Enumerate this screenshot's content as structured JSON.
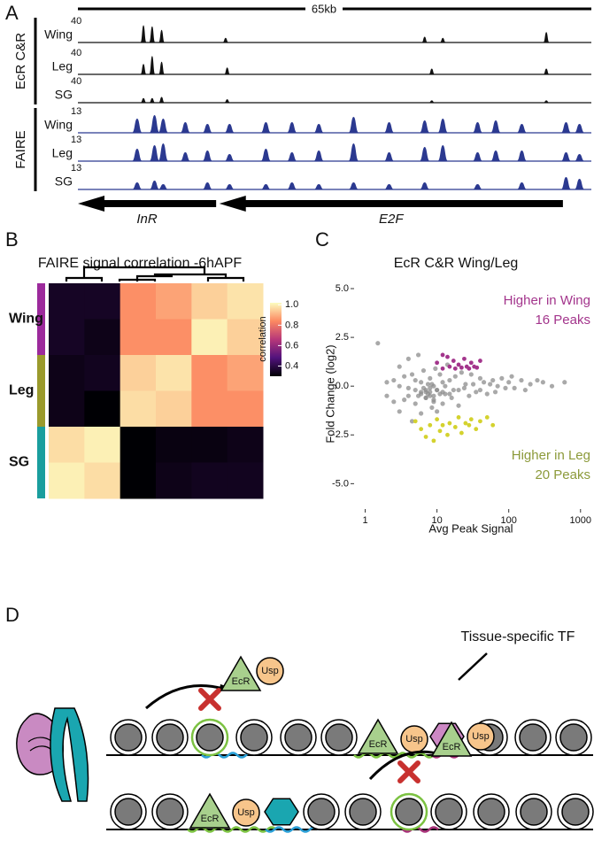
{
  "panel_labels": [
    "A",
    "B",
    "C",
    "D"
  ],
  "panel_a": {
    "scale_label": "65kb",
    "xlim": [
      0,
      65
    ],
    "groups": [
      {
        "name": "EcR C&R",
        "color": "#111111",
        "tracks": [
          {
            "name": "Wing",
            "max_label": "40",
            "max": 40,
            "peaks": [
              {
                "x": 8.3,
                "h": 30
              },
              {
                "x": 9.4,
                "h": 28
              },
              {
                "x": 10.6,
                "h": 22
              },
              {
                "x": 18.7,
                "h": 8
              },
              {
                "x": 43.9,
                "h": 10
              },
              {
                "x": 46.2,
                "h": 8
              },
              {
                "x": 59.3,
                "h": 18
              }
            ]
          },
          {
            "name": "Leg",
            "max_label": "40",
            "max": 40,
            "peaks": [
              {
                "x": 8.3,
                "h": 18
              },
              {
                "x": 9.4,
                "h": 32
              },
              {
                "x": 10.6,
                "h": 22
              },
              {
                "x": 18.9,
                "h": 12
              },
              {
                "x": 44.8,
                "h": 10
              },
              {
                "x": 59.3,
                "h": 10
              }
            ]
          },
          {
            "name": "SG",
            "max_label": "40",
            "max": 40,
            "peaks": [
              {
                "x": 8.3,
                "h": 8
              },
              {
                "x": 9.4,
                "h": 8
              },
              {
                "x": 10.6,
                "h": 10
              },
              {
                "x": 18.9,
                "h": 6
              },
              {
                "x": 44.8,
                "h": 4
              },
              {
                "x": 59.3,
                "h": 4
              }
            ]
          }
        ]
      },
      {
        "name": "FAIRE",
        "color": "#2b3990",
        "tracks": [
          {
            "name": "Wing",
            "max_label": "13",
            "max": 13,
            "peaks": [
              {
                "x": 7.5,
                "h": 8
              },
              {
                "x": 9.7,
                "h": 10
              },
              {
                "x": 10.8,
                "h": 8
              },
              {
                "x": 13.6,
                "h": 6
              },
              {
                "x": 16.4,
                "h": 5
              },
              {
                "x": 19.2,
                "h": 5
              },
              {
                "x": 23.8,
                "h": 6
              },
              {
                "x": 27.1,
                "h": 6
              },
              {
                "x": 30.5,
                "h": 5
              },
              {
                "x": 34.9,
                "h": 9
              },
              {
                "x": 39.4,
                "h": 6
              },
              {
                "x": 43.9,
                "h": 7
              },
              {
                "x": 46.2,
                "h": 8
              },
              {
                "x": 50.6,
                "h": 6
              },
              {
                "x": 52.9,
                "h": 7
              },
              {
                "x": 56.2,
                "h": 5
              },
              {
                "x": 61.8,
                "h": 6
              },
              {
                "x": 63.5,
                "h": 5
              }
            ]
          },
          {
            "name": "Leg",
            "max_label": "13",
            "max": 13,
            "peaks": [
              {
                "x": 7.5,
                "h": 7
              },
              {
                "x": 9.7,
                "h": 9
              },
              {
                "x": 10.8,
                "h": 10
              },
              {
                "x": 13.6,
                "h": 5
              },
              {
                "x": 16.4,
                "h": 6
              },
              {
                "x": 19.2,
                "h": 4
              },
              {
                "x": 23.8,
                "h": 7
              },
              {
                "x": 27.1,
                "h": 5
              },
              {
                "x": 30.5,
                "h": 6
              },
              {
                "x": 34.9,
                "h": 10
              },
              {
                "x": 39.4,
                "h": 5
              },
              {
                "x": 43.9,
                "h": 8
              },
              {
                "x": 46.2,
                "h": 9
              },
              {
                "x": 50.6,
                "h": 5
              },
              {
                "x": 52.9,
                "h": 6
              },
              {
                "x": 56.2,
                "h": 6
              },
              {
                "x": 61.8,
                "h": 5
              },
              {
                "x": 63.5,
                "h": 4
              }
            ]
          },
          {
            "name": "SG",
            "max_label": "13",
            "max": 13,
            "peaks": [
              {
                "x": 7.5,
                "h": 4
              },
              {
                "x": 9.7,
                "h": 5
              },
              {
                "x": 10.8,
                "h": 3
              },
              {
                "x": 16.4,
                "h": 4
              },
              {
                "x": 19.2,
                "h": 3
              },
              {
                "x": 23.8,
                "h": 3
              },
              {
                "x": 27.1,
                "h": 4
              },
              {
                "x": 30.5,
                "h": 3
              },
              {
                "x": 34.9,
                "h": 4
              },
              {
                "x": 39.4,
                "h": 3
              },
              {
                "x": 43.9,
                "h": 4
              },
              {
                "x": 50.6,
                "h": 3
              },
              {
                "x": 56.2,
                "h": 4
              },
              {
                "x": 61.8,
                "h": 7
              },
              {
                "x": 63.5,
                "h": 6
              }
            ]
          }
        ]
      }
    ],
    "genes": [
      {
        "name": "InR",
        "start": 0,
        "end": 17.5
      },
      {
        "name": "E2F",
        "start": 17.9,
        "end": 61.4
      }
    ]
  },
  "chart_data": [
    {
      "type": "heatmap",
      "title": "FAIRE signal correlation -6hAPF",
      "rows": [
        "Wing",
        "Leg",
        "SG"
      ],
      "row_colors": [
        "#9c2a9c",
        "#9a9a2c",
        "#1a9e9e"
      ],
      "values": [
        [
          0.35,
          0.35,
          0.85,
          0.88,
          0.95,
          0.98
        ],
        [
          0.35,
          0.33,
          0.85,
          0.85,
          1.0,
          0.95
        ],
        [
          0.33,
          0.34,
          0.95,
          0.98,
          0.85,
          0.88
        ],
        [
          0.33,
          0.3,
          0.97,
          0.95,
          0.85,
          0.85
        ],
        [
          0.97,
          1.0,
          0.28,
          0.32,
          0.32,
          0.33
        ],
        [
          1.0,
          0.97,
          0.3,
          0.33,
          0.34,
          0.34
        ]
      ],
      "colormap": [
        "#000004",
        "#51127c",
        "#b73779",
        "#fc8961",
        "#fcfdbf"
      ],
      "clim": [
        0.3,
        1.02
      ],
      "colorbar_label": "correlation",
      "cticks": [
        {
          "value": 1.0,
          "label": "1.0"
        },
        0.8,
        0.6,
        0.4
      ]
    },
    {
      "type": "scatter",
      "title": "EcR C&R Wing/Leg",
      "xlabel": "Avg Peak Signal",
      "ylabel": "Fold Change (log2)",
      "xscale": "log",
      "xlim": [
        0.7,
        1300
      ],
      "xticks": [
        1,
        10,
        100,
        1000
      ],
      "ylim": [
        -6.3,
        5.5
      ],
      "yticks": [
        {
          "value": 5,
          "label": "5.0"
        },
        2.5,
        {
          "value": 0,
          "label": "0.0"
        },
        -2.5,
        {
          "value": -5,
          "label": "-5.0"
        }
      ],
      "series": [
        {
          "color": "#8c8c8c",
          "points": [
            [
              1.5,
              2.2
            ],
            [
              2,
              0.2
            ],
            [
              2.5,
              -0.8
            ],
            [
              3,
              1.0
            ],
            [
              3,
              -1.3
            ],
            [
              3.5,
              0.5
            ],
            [
              4,
              -0.5
            ],
            [
              4,
              1.4
            ],
            [
              4.5,
              -1.8
            ],
            [
              5,
              0.3
            ],
            [
              5,
              -0.9
            ],
            [
              5.5,
              1.6
            ],
            [
              6,
              -0.3
            ],
            [
              6,
              -1.4
            ],
            [
              6.5,
              0.8
            ],
            [
              7,
              -0.2
            ],
            [
              7,
              -0.6
            ],
            [
              7.5,
              0.1
            ],
            [
              8,
              -0.3
            ],
            [
              8,
              -0.5
            ],
            [
              8,
              0.4
            ],
            [
              8.5,
              -1.1
            ],
            [
              9,
              0.0
            ],
            [
              9,
              -0.7
            ],
            [
              9.5,
              0.9
            ],
            [
              10,
              -0.2
            ],
            [
              10,
              -1.3
            ],
            [
              11,
              0.6
            ],
            [
              12,
              0.2
            ],
            [
              12,
              -0.9
            ],
            [
              13,
              -0.4
            ],
            [
              14,
              1.1
            ],
            [
              15,
              0.3
            ],
            [
              16,
              -0.6
            ],
            [
              18,
              0.5
            ],
            [
              20,
              -0.2
            ],
            [
              20,
              -1.0
            ],
            [
              22,
              0.7
            ],
            [
              25,
              0.1
            ],
            [
              28,
              -0.5
            ],
            [
              30,
              0.6
            ],
            [
              35,
              -0.3
            ],
            [
              40,
              0.4
            ],
            [
              45,
              0.2
            ],
            [
              50,
              -0.4
            ],
            [
              60,
              0.3
            ],
            [
              70,
              0.0
            ],
            [
              80,
              0.4
            ],
            [
              100,
              0.2
            ],
            [
              120,
              -0.1
            ],
            [
              150,
              0.3
            ],
            [
              200,
              0.1
            ],
            [
              250,
              0.3
            ],
            [
              300,
              0.2
            ],
            [
              400,
              0.0
            ],
            [
              600,
              0.2
            ],
            [
              5,
              -0.2
            ],
            [
              6,
              -0.4
            ],
            [
              7,
              -0.3
            ],
            [
              8,
              -0.1
            ],
            [
              9,
              -0.5
            ],
            [
              10,
              -0.2
            ],
            [
              12,
              -0.3
            ],
            [
              15,
              -0.4
            ],
            [
              3,
              0.0
            ],
            [
              4,
              -0.1
            ],
            [
              2.5,
              0.3
            ],
            [
              6,
              0.2
            ],
            [
              7,
              -0.6
            ],
            [
              9,
              -0.8
            ],
            [
              5.5,
              -0.5
            ],
            [
              6.5,
              -0.1
            ],
            [
              7.5,
              -0.4
            ],
            [
              8.5,
              0.1
            ],
            [
              11,
              -0.4
            ],
            [
              13,
              0.0
            ],
            [
              17,
              -0.2
            ],
            [
              24,
              -0.1
            ],
            [
              32,
              0.1
            ],
            [
              40,
              -0.2
            ],
            [
              55,
              0.1
            ],
            [
              65,
              -0.3
            ],
            [
              90,
              -0.1
            ],
            [
              110,
              0.5
            ],
            [
              170,
              -0.2
            ],
            [
              3.5,
              -0.7
            ],
            [
              4.5,
              0.6
            ],
            [
              2,
              -0.5
            ]
          ]
        },
        {
          "color": "#a3358c",
          "points": [
            [
              10,
              1.2
            ],
            [
              12,
              0.9
            ],
            [
              14,
              1.5
            ],
            [
              15,
              1.0
            ],
            [
              17,
              1.3
            ],
            [
              18,
              0.9
            ],
            [
              20,
              1.1
            ],
            [
              22,
              0.95
            ],
            [
              24,
              1.4
            ],
            [
              26,
              1.0
            ],
            [
              28,
              0.9
            ],
            [
              30,
              1.2
            ],
            [
              33,
              1.0
            ],
            [
              36,
              0.95
            ],
            [
              40,
              1.3
            ],
            [
              12,
              1.6
            ]
          ]
        },
        {
          "color": "#d4d22e",
          "points": [
            [
              5,
              -1.8
            ],
            [
              6,
              -2.2
            ],
            [
              7,
              -2.6
            ],
            [
              8,
              -2.0
            ],
            [
              9,
              -2.8
            ],
            [
              10,
              -1.7
            ],
            [
              11,
              -2.3
            ],
            [
              12,
              -2.0
            ],
            [
              14,
              -2.5
            ],
            [
              15,
              -1.9
            ],
            [
              18,
              -2.1
            ],
            [
              20,
              -1.6
            ],
            [
              22,
              -2.4
            ],
            [
              25,
              -1.9
            ],
            [
              28,
              -2.0
            ],
            [
              30,
              -1.7
            ],
            [
              35,
              -2.2
            ],
            [
              40,
              -1.8
            ],
            [
              50,
              -1.6
            ],
            [
              60,
              -2.0
            ]
          ]
        }
      ],
      "annotations": [
        {
          "text": "Higher in Wing",
          "color": "#a3358c"
        },
        {
          "text": "16 Peaks",
          "color": "#a3358c"
        },
        {
          "text": "Higher in Leg",
          "color": "#8c9a3a"
        },
        {
          "text": "20 Peaks",
          "color": "#8c9a3a"
        }
      ]
    }
  ],
  "diagram": {
    "ecr": "EcR",
    "usp": "Usp",
    "tf": "Tissue-specific TF"
  }
}
